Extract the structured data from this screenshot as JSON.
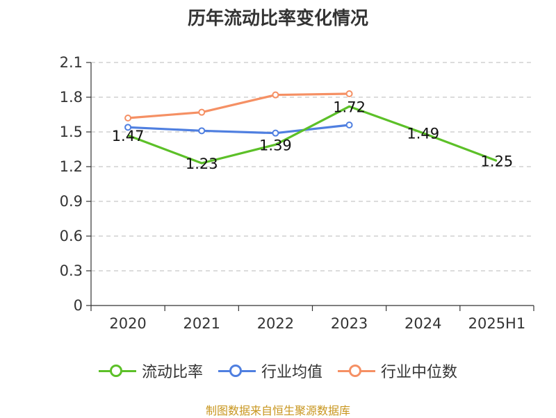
{
  "page": {
    "title": "历年流动比率变化情况",
    "source": "制图数据来自恒生聚源数据库"
  },
  "legend": [
    {
      "label": "流动比率",
      "color": "#5cc028"
    },
    {
      "label": "行业均值",
      "color": "#4f7fe0"
    },
    {
      "label": "行业中位数",
      "color": "#f59064"
    }
  ],
  "chart_data": {
    "type": "line",
    "categories": [
      "2020",
      "2021",
      "2022",
      "2023",
      "2024",
      "2025H1"
    ],
    "ylim": [
      0,
      2.1
    ],
    "yticks": [
      "0",
      "0.3",
      "0.6",
      "0.9",
      "1.2",
      "1.5",
      "1.8",
      "2.1"
    ],
    "grid": true,
    "legend_position": "bottom",
    "series": [
      {
        "name": "流动比率",
        "color": "#5cc028",
        "values": [
          1.47,
          1.23,
          1.39,
          1.72,
          1.49,
          1.25
        ],
        "labels": [
          "1.47",
          "1.23",
          "1.39",
          "1.72",
          "1.49",
          "1.25"
        ],
        "markers": false
      },
      {
        "name": "行业均值",
        "color": "#4f7fe0",
        "values": [
          1.54,
          1.51,
          1.49,
          1.56,
          null,
          null
        ],
        "markers": true
      },
      {
        "name": "行业中位数",
        "color": "#f59064",
        "values": [
          1.62,
          1.67,
          1.82,
          1.83,
          null,
          null
        ],
        "markers": true
      }
    ]
  }
}
